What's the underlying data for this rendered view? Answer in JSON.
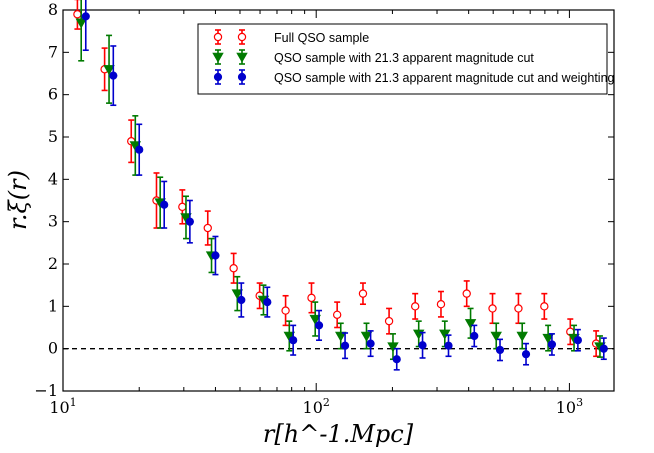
{
  "chart_data": {
    "type": "scatter",
    "title": "",
    "xlabel": "r[h^-1.Mpc]",
    "ylabel": "r.ξ(r)",
    "xscale": "log",
    "xlim": [
      10,
      1500
    ],
    "ylim": [
      -1,
      8
    ],
    "reference_line": 0,
    "x_tick_labels": [
      {
        "value": 10,
        "base": "10",
        "exp": "1"
      },
      {
        "value": 100,
        "base": "10",
        "exp": "2"
      },
      {
        "value": 1000,
        "base": "10",
        "exp": "3"
      }
    ],
    "y_ticks": [
      -1,
      0,
      1,
      2,
      3,
      4,
      5,
      6,
      7,
      8
    ],
    "y_tick_labels": [
      "−1",
      "0",
      "1",
      "2",
      "3",
      "4",
      "5",
      "6",
      "7",
      "8"
    ],
    "legend_position": "top-right",
    "series": [
      {
        "name": "Full QSO sample",
        "color": "#ff0000",
        "marker": "open-circle",
        "x": [
          11.4,
          14.6,
          18.6,
          23.4,
          29.6,
          37.3,
          47.2,
          59.8,
          75.7,
          95.8,
          121,
          153,
          194,
          246,
          311,
          393,
          497,
          629,
          796,
          1008,
          1275
        ],
        "y": [
          7.9,
          6.6,
          4.9,
          3.5,
          3.35,
          2.85,
          1.9,
          1.25,
          0.9,
          1.2,
          0.8,
          1.3,
          0.65,
          1.0,
          1.05,
          1.3,
          0.95,
          0.95,
          1.0,
          0.4,
          0.12
        ],
        "err": [
          0.35,
          0.5,
          0.5,
          0.65,
          0.4,
          0.4,
          0.35,
          0.3,
          0.35,
          0.35,
          0.3,
          0.25,
          0.3,
          0.3,
          0.3,
          0.3,
          0.35,
          0.35,
          0.3,
          0.3,
          0.3
        ]
      },
      {
        "name": "QSO sample with 21.3 apparent magnitude cut",
        "color": "#007a00",
        "marker": "triangle-down",
        "x": [
          11.8,
          15.2,
          19.3,
          24.2,
          30.6,
          38.6,
          48.8,
          61.9,
          78.3,
          99.1,
          125,
          158,
          201,
          254,
          322,
          407,
          514,
          651,
          824,
          1043,
          1320
        ],
        "y": [
          7.7,
          6.6,
          4.8,
          3.45,
          3.1,
          2.2,
          1.3,
          1.15,
          0.3,
          0.7,
          0.3,
          0.3,
          0.05,
          0.35,
          0.35,
          0.6,
          0.3,
          0.3,
          0.25,
          0.25,
          0.05
        ],
        "err": [
          0.9,
          0.8,
          0.7,
          0.6,
          0.5,
          0.4,
          0.4,
          0.35,
          0.35,
          0.4,
          0.3,
          0.3,
          0.3,
          0.3,
          0.3,
          0.35,
          0.3,
          0.3,
          0.3,
          0.3,
          0.25
        ]
      },
      {
        "name": "QSO sample with 21.3 apparent magnitude cut and weighting",
        "color": "#0000cc",
        "marker": "filled-circle",
        "x": [
          12.3,
          15.8,
          20.0,
          25.1,
          31.7,
          40.0,
          50.6,
          64.1,
          81.1,
          102.6,
          130,
          164,
          208,
          263,
          333,
          421,
          532,
          674,
          853,
          1080,
          1367
        ],
        "y": [
          7.85,
          6.45,
          4.7,
          3.4,
          3.0,
          2.2,
          1.15,
          1.1,
          0.2,
          0.55,
          0.07,
          0.12,
          -0.25,
          0.08,
          0.07,
          0.3,
          -0.03,
          -0.13,
          0.1,
          0.2,
          0.0
        ],
        "err": [
          0.8,
          0.7,
          0.6,
          0.55,
          0.5,
          0.45,
          0.4,
          0.35,
          0.35,
          0.35,
          0.3,
          0.3,
          0.25,
          0.3,
          0.25,
          0.25,
          0.25,
          0.25,
          0.25,
          0.25,
          0.25
        ]
      }
    ]
  }
}
